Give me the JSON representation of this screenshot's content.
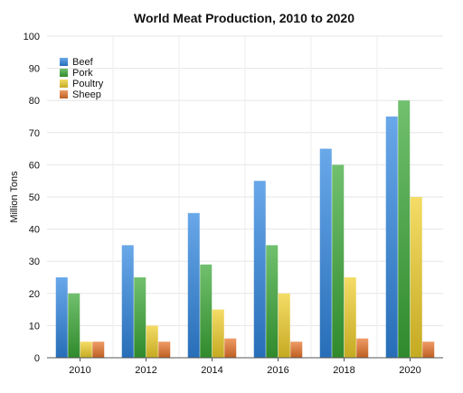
{
  "chart_data": {
    "type": "bar",
    "title": "World Meat Production, 2010 to 2020",
    "xlabel": "",
    "ylabel": "Million Tons",
    "categories": [
      "2010",
      "2012",
      "2014",
      "2016",
      "2018",
      "2020"
    ],
    "series": [
      {
        "name": "Beef",
        "values": [
          25,
          35,
          45,
          55,
          65,
          75
        ],
        "color": "#2f86e0"
      },
      {
        "name": "Pork",
        "values": [
          20,
          25,
          29,
          35,
          60,
          80
        ],
        "color": "#3aa836"
      },
      {
        "name": "Poultry",
        "values": [
          5,
          10,
          15,
          20,
          25,
          50
        ],
        "color": "#f0cf2a"
      },
      {
        "name": "Sheep",
        "values": [
          5,
          5,
          6,
          5,
          6,
          5
        ],
        "color": "#e8742a"
      }
    ],
    "ylim": [
      0,
      100
    ],
    "yticks": [
      "0",
      "10",
      "20",
      "30",
      "40",
      "50",
      "60",
      "70",
      "80",
      "90",
      "100"
    ],
    "grid": true,
    "legend_position": "top-left"
  }
}
